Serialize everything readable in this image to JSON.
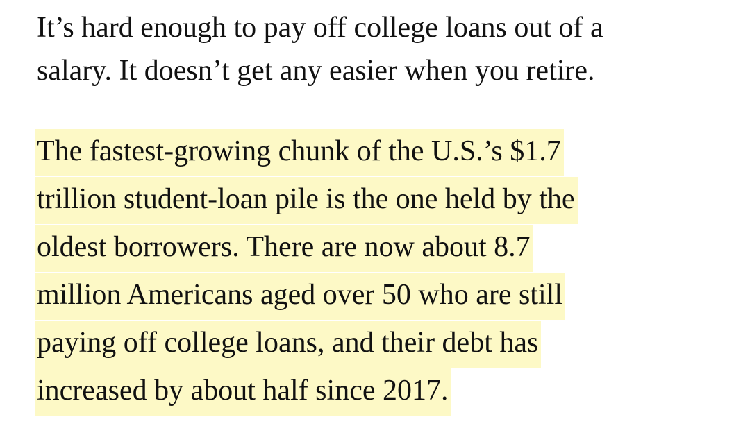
{
  "article": {
    "paragraph_1": {
      "lines": [
        "It’s hard enough to pay off college loans out of a",
        "salary. It doesn’t get any easier when you retire."
      ]
    },
    "paragraph_2": {
      "highlight_color": "#fdf9c6",
      "lines": [
        "The fastest-growing chunk of the U.S.’s $1.7",
        "trillion student-loan pile is the one held by the",
        "oldest borrowers. There are now about 8.7",
        "million Americans aged over 50 who are still",
        "paying off college loans, and their debt has",
        "increased by about half since 2017."
      ]
    }
  }
}
